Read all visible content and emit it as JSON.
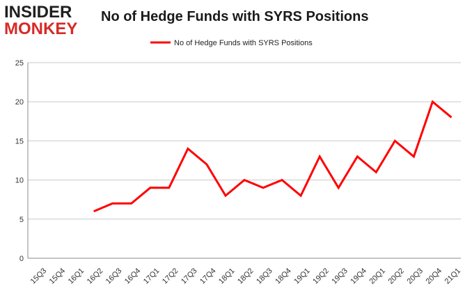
{
  "logo": {
    "line1": "INSIDER",
    "line2": "MONKEY"
  },
  "chart_data": {
    "type": "line",
    "title": "No of Hedge Funds with SYRS Positions",
    "xlabel": "",
    "ylabel": "",
    "categories": [
      "15Q3",
      "15Q4",
      "16Q1",
      "16Q2",
      "16Q3",
      "16Q4",
      "17Q1",
      "17Q2",
      "17Q3",
      "17Q4",
      "18Q1",
      "18Q2",
      "18Q3",
      "18Q4",
      "19Q1",
      "19Q2",
      "19Q3",
      "19Q4",
      "20Q1",
      "20Q2",
      "20Q3",
      "20Q4",
      "21Q1"
    ],
    "series": [
      {
        "name": "No of Hedge Funds with SYRS Positions",
        "color": "#ff0000",
        "values": [
          null,
          null,
          null,
          6,
          7,
          7,
          9,
          9,
          14,
          12,
          8,
          10,
          9,
          10,
          8,
          13,
          9,
          13,
          11,
          15,
          13,
          20,
          18
        ]
      }
    ],
    "ylim": [
      0,
      25
    ],
    "yticks": [
      0,
      5,
      10,
      15,
      20,
      25
    ],
    "grid": "horizontal",
    "legend": "top-center"
  }
}
